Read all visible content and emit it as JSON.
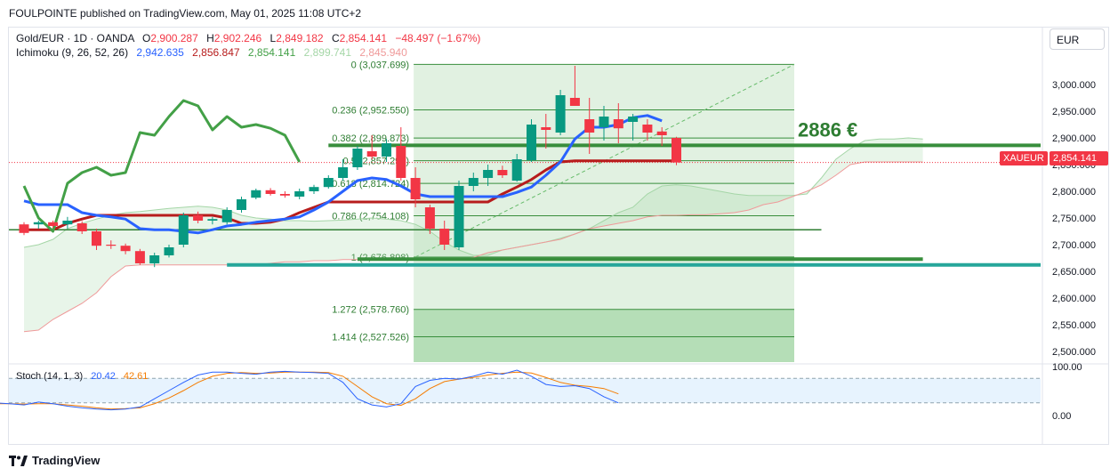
{
  "header": {
    "publisher": "FOULPOINTE published on TradingView.com, May 01, 2025 11:08 UTC+2"
  },
  "currency_button": "EUR",
  "legend": {
    "symbol": "Gold/EUR · 1D · OANDA",
    "o_label": "O",
    "o_value": "2,900.287",
    "h_label": "H",
    "h_value": "2,902.246",
    "l_label": "L",
    "l_value": "2,849.182",
    "c_label": "C",
    "c_value": "2,854.141",
    "change": "−48.497 (−1.67%)",
    "ichimoku_label": "Ichimoku (9, 26, 52, 26)",
    "ichimoku_values": [
      "2,942.635",
      "2,856.847",
      "2,854.141",
      "2,899.741",
      "2,845.940"
    ],
    "stoch_label": "Stoch (14, 1, 3)",
    "stoch_values": [
      "20.42",
      "42.61"
    ]
  },
  "price_tag": {
    "symbol": "XAUEUR",
    "value": "2,854.141"
  },
  "annotation": {
    "text": "2886 €",
    "price": 2886
  },
  "footer": {
    "brand": "TradingView"
  },
  "colors": {
    "up": "#089981",
    "down": "#f23645",
    "tenkan": "#2962ff",
    "kijun": "#b71c1c",
    "lagging": "#43a047",
    "cloud": "#a5d6a7",
    "fib": "#388e3c",
    "stoch_k": "#2962ff",
    "stoch_d": "#f57c00"
  },
  "chart_data": {
    "type": "candlestick",
    "y_ticks": [
      "2,500.000",
      "2,550.000",
      "2,600.000",
      "2,650.000",
      "2,700.000",
      "2,750.000",
      "2,800.000",
      "2,850.000",
      "2,900.000",
      "2,950.000",
      "3,000.000"
    ],
    "ylim": [
      2480,
      3055
    ],
    "stoch_ticks": [
      "0.00",
      "100.00"
    ],
    "candles": [
      [
        2738,
        2742,
        2718,
        2722
      ],
      [
        2738,
        2745,
        2730,
        2742
      ],
      [
        2742,
        2745,
        2732,
        2735
      ],
      [
        2738,
        2752,
        2730,
        2745
      ],
      [
        2740,
        2744,
        2720,
        2725
      ],
      [
        2725,
        2730,
        2690,
        2698
      ],
      [
        2700,
        2708,
        2692,
        2698
      ],
      [
        2698,
        2702,
        2682,
        2688
      ],
      [
        2688,
        2692,
        2662,
        2665
      ],
      [
        2665,
        2685,
        2658,
        2680
      ],
      [
        2680,
        2700,
        2676,
        2695
      ],
      [
        2700,
        2760,
        2695,
        2755
      ],
      [
        2755,
        2762,
        2740,
        2745
      ],
      [
        2745,
        2752,
        2738,
        2748
      ],
      [
        2742,
        2770,
        2738,
        2765
      ],
      [
        2765,
        2790,
        2760,
        2785
      ],
      [
        2788,
        2805,
        2785,
        2802
      ],
      [
        2802,
        2806,
        2792,
        2795
      ],
      [
        2795,
        2800,
        2788,
        2792
      ],
      [
        2790,
        2805,
        2785,
        2800
      ],
      [
        2800,
        2812,
        2795,
        2808
      ],
      [
        2808,
        2830,
        2805,
        2825
      ],
      [
        2825,
        2860,
        2820,
        2845
      ],
      [
        2845,
        2885,
        2840,
        2880
      ],
      [
        2875,
        2905,
        2860,
        2865
      ],
      [
        2865,
        2898,
        2855,
        2890
      ],
      [
        2885,
        2920,
        2820,
        2825
      ],
      [
        2825,
        2845,
        2770,
        2785
      ],
      [
        2770,
        2775,
        2720,
        2730
      ],
      [
        2730,
        2745,
        2690,
        2700
      ],
      [
        2695,
        2820,
        2690,
        2810
      ],
      [
        2810,
        2835,
        2800,
        2825
      ],
      [
        2825,
        2850,
        2810,
        2840
      ],
      [
        2840,
        2848,
        2825,
        2830
      ],
      [
        2820,
        2870,
        2818,
        2860
      ],
      [
        2858,
        2935,
        2855,
        2925
      ],
      [
        2920,
        2945,
        2880,
        2915
      ],
      [
        2910,
        2990,
        2905,
        2980
      ],
      [
        2975,
        3035,
        2960,
        2960
      ],
      [
        2935,
        2975,
        2870,
        2910
      ],
      [
        2920,
        2960,
        2895,
        2940
      ],
      [
        2935,
        2965,
        2890,
        2918
      ],
      [
        2930,
        2945,
        2895,
        2940
      ],
      [
        2925,
        2935,
        2895,
        2910
      ],
      [
        2912,
        2920,
        2885,
        2905
      ],
      [
        2900,
        2902,
        2849,
        2854
      ]
    ],
    "tenkan": [
      [
        0,
        2782
      ],
      [
        1,
        2775
      ],
      [
        2,
        2775
      ],
      [
        3,
        2775
      ],
      [
        4,
        2760
      ],
      [
        5,
        2755
      ],
      [
        6,
        2752
      ],
      [
        7,
        2748
      ],
      [
        8,
        2730
      ],
      [
        9,
        2728
      ],
      [
        10,
        2728
      ],
      [
        11,
        2725
      ],
      [
        12,
        2722
      ],
      [
        13,
        2728
      ],
      [
        14,
        2735
      ],
      [
        15,
        2738
      ],
      [
        16,
        2742
      ],
      [
        17,
        2745
      ],
      [
        18,
        2748
      ],
      [
        19,
        2752
      ],
      [
        20,
        2765
      ],
      [
        21,
        2780
      ],
      [
        22,
        2800
      ],
      [
        23,
        2820
      ],
      [
        24,
        2825
      ],
      [
        25,
        2822
      ],
      [
        26,
        2810
      ],
      [
        27,
        2795
      ],
      [
        28,
        2790
      ],
      [
        29,
        2790
      ],
      [
        30,
        2790
      ],
      [
        31,
        2790
      ],
      [
        32,
        2790
      ],
      [
        33,
        2790
      ],
      [
        34,
        2798
      ],
      [
        35,
        2808
      ],
      [
        36,
        2830
      ],
      [
        37,
        2855
      ],
      [
        38,
        2898
      ],
      [
        39,
        2920
      ],
      [
        40,
        2920
      ],
      [
        41,
        2925
      ],
      [
        42,
        2938
      ],
      [
        43,
        2942
      ],
      [
        44,
        2932
      ]
    ],
    "kijun": [
      [
        0,
        2728
      ],
      [
        1,
        2728
      ],
      [
        2,
        2728
      ],
      [
        3,
        2740
      ],
      [
        4,
        2748
      ],
      [
        5,
        2755
      ],
      [
        6,
        2755
      ],
      [
        7,
        2755
      ],
      [
        8,
        2755
      ],
      [
        9,
        2755
      ],
      [
        10,
        2755
      ],
      [
        11,
        2755
      ],
      [
        12,
        2755
      ],
      [
        13,
        2755
      ],
      [
        14,
        2750
      ],
      [
        15,
        2740
      ],
      [
        16,
        2740
      ],
      [
        17,
        2742
      ],
      [
        18,
        2748
      ],
      [
        19,
        2760
      ],
      [
        20,
        2770
      ],
      [
        21,
        2780
      ],
      [
        22,
        2780
      ],
      [
        23,
        2780
      ],
      [
        24,
        2780
      ],
      [
        25,
        2780
      ],
      [
        26,
        2780
      ],
      [
        27,
        2780
      ],
      [
        28,
        2780
      ],
      [
        29,
        2780
      ],
      [
        30,
        2780
      ],
      [
        31,
        2780
      ],
      [
        32,
        2780
      ],
      [
        33,
        2795
      ],
      [
        34,
        2808
      ],
      [
        35,
        2822
      ],
      [
        36,
        2840
      ],
      [
        37,
        2855
      ],
      [
        38,
        2857
      ],
      [
        39,
        2857
      ],
      [
        40,
        2857
      ],
      [
        41,
        2857
      ],
      [
        42,
        2857
      ],
      [
        43,
        2857
      ],
      [
        44,
        2857
      ],
      [
        45,
        2857
      ]
    ],
    "lagging": [
      [
        0,
        2810
      ],
      [
        1,
        2750
      ],
      [
        2,
        2725
      ],
      [
        3,
        2815
      ],
      [
        4,
        2835
      ],
      [
        5,
        2845
      ],
      [
        6,
        2830
      ],
      [
        7,
        2835
      ],
      [
        8,
        2910
      ],
      [
        9,
        2905
      ],
      [
        10,
        2940
      ],
      [
        11,
        2970
      ],
      [
        12,
        2960
      ],
      [
        13,
        2915
      ],
      [
        14,
        2940
      ],
      [
        15,
        2920
      ],
      [
        16,
        2925
      ],
      [
        17,
        2918
      ],
      [
        18,
        2905
      ],
      [
        19,
        2855
      ]
    ],
    "span_a": [
      [
        0,
        2695
      ],
      [
        1,
        2700
      ],
      [
        2,
        2710
      ],
      [
        3,
        2730
      ],
      [
        4,
        2740
      ],
      [
        5,
        2748
      ],
      [
        6,
        2755
      ],
      [
        7,
        2760
      ],
      [
        8,
        2762
      ],
      [
        9,
        2765
      ],
      [
        10,
        2768
      ],
      [
        11,
        2770
      ],
      [
        12,
        2772
      ],
      [
        13,
        2770
      ],
      [
        14,
        2765
      ],
      [
        15,
        2755
      ],
      [
        16,
        2750
      ],
      [
        17,
        2748
      ],
      [
        18,
        2745
      ],
      [
        19,
        2745
      ],
      [
        20,
        2744
      ],
      [
        21,
        2745
      ],
      [
        22,
        2746
      ],
      [
        23,
        2748
      ],
      [
        24,
        2750
      ],
      [
        25,
        2748
      ],
      [
        26,
        2745
      ],
      [
        27,
        2738
      ],
      [
        28,
        2725
      ],
      [
        29,
        2705
      ],
      [
        30,
        2690
      ],
      [
        31,
        2680
      ],
      [
        32,
        2680
      ],
      [
        33,
        2690
      ],
      [
        34,
        2695
      ],
      [
        35,
        2700
      ],
      [
        36,
        2705
      ],
      [
        37,
        2712
      ],
      [
        38,
        2720
      ],
      [
        39,
        2730
      ],
      [
        40,
        2745
      ],
      [
        41,
        2760
      ],
      [
        42,
        2770
      ],
      [
        43,
        2795
      ],
      [
        44,
        2810
      ],
      [
        45,
        2812
      ],
      [
        46,
        2810
      ],
      [
        47,
        2805
      ],
      [
        48,
        2800
      ],
      [
        49,
        2795
      ],
      [
        50,
        2792
      ],
      [
        51,
        2792
      ],
      [
        52,
        2792
      ],
      [
        53,
        2792
      ],
      [
        54,
        2795
      ],
      [
        55,
        2825
      ],
      [
        56,
        2860
      ],
      [
        57,
        2880
      ],
      [
        58,
        2895
      ],
      [
        59,
        2898
      ],
      [
        60,
        2898
      ],
      [
        61,
        2900
      ],
      [
        62,
        2898
      ]
    ],
    "span_b": [
      [
        0,
        2537
      ],
      [
        1,
        2540
      ],
      [
        2,
        2560
      ],
      [
        3,
        2575
      ],
      [
        4,
        2590
      ],
      [
        5,
        2610
      ],
      [
        6,
        2640
      ],
      [
        7,
        2660
      ],
      [
        8,
        2662
      ],
      [
        9,
        2662
      ],
      [
        10,
        2662
      ],
      [
        11,
        2662
      ],
      [
        12,
        2662
      ],
      [
        13,
        2662
      ],
      [
        14,
        2662
      ],
      [
        15,
        2662
      ],
      [
        16,
        2662
      ],
      [
        17,
        2665
      ],
      [
        18,
        2668
      ],
      [
        19,
        2668
      ],
      [
        20,
        2670
      ],
      [
        21,
        2670
      ],
      [
        22,
        2672
      ],
      [
        23,
        2672
      ],
      [
        24,
        2672
      ],
      [
        25,
        2672
      ],
      [
        26,
        2672
      ],
      [
        27,
        2672
      ],
      [
        28,
        2672
      ],
      [
        29,
        2672
      ],
      [
        30,
        2672
      ],
      [
        31,
        2676
      ],
      [
        32,
        2685
      ],
      [
        33,
        2690
      ],
      [
        34,
        2695
      ],
      [
        35,
        2700
      ],
      [
        36,
        2705
      ],
      [
        37,
        2710
      ],
      [
        38,
        2720
      ],
      [
        39,
        2730
      ],
      [
        40,
        2735
      ],
      [
        41,
        2740
      ],
      [
        42,
        2745
      ],
      [
        43,
        2752
      ],
      [
        44,
        2755
      ],
      [
        45,
        2755
      ],
      [
        46,
        2756
      ],
      [
        47,
        2756
      ],
      [
        48,
        2758
      ],
      [
        49,
        2760
      ],
      [
        50,
        2765
      ],
      [
        51,
        2775
      ],
      [
        52,
        2780
      ],
      [
        53,
        2790
      ],
      [
        54,
        2800
      ],
      [
        55,
        2812
      ],
      [
        56,
        2830
      ],
      [
        57,
        2850
      ],
      [
        58,
        2855
      ],
      [
        59,
        2855
      ],
      [
        60,
        2855
      ],
      [
        61,
        2855
      ],
      [
        62,
        2855
      ]
    ],
    "fib_levels": [
      {
        "label": "0 (3,037.699)",
        "value": 3037.699
      },
      {
        "label": "0.236 (2,952.550)",
        "value": 2952.55
      },
      {
        "label": "0.382 (2,899.873)",
        "value": 2899.873
      },
      {
        "label": "0.5 (2,857.298)",
        "value": 2857.298
      },
      {
        "label": "0.618 (2,814.724)",
        "value": 2814.724
      },
      {
        "label": "0.786 (2,754.108)",
        "value": 2754.108
      },
      {
        "label": "1 (2,676.898)",
        "value": 2676.898
      },
      {
        "label": "1.272 (2,578.760)",
        "value": 2578.76
      },
      {
        "label": "1.414 (2,527.526)",
        "value": 2527.526
      }
    ],
    "horizontal_lines": [
      {
        "value": 2886,
        "color": "#388e3c",
        "from": 21,
        "to": 80,
        "width": 4
      },
      {
        "value": 2728,
        "color": "#2e7d32",
        "from": -1,
        "to": 55,
        "width": 1.5
      },
      {
        "value": 2673,
        "color": "#388e3c",
        "from": 23,
        "to": 62,
        "width": 4
      },
      {
        "value": 2662,
        "color": "#26a69a",
        "from": 14,
        "to": 80,
        "width": 4
      }
    ],
    "stoch_k": [
      [
        0,
        20
      ],
      [
        1,
        18
      ],
      [
        2,
        15
      ],
      [
        3,
        22
      ],
      [
        4,
        18
      ],
      [
        5,
        12
      ],
      [
        6,
        8
      ],
      [
        7,
        5
      ],
      [
        8,
        3
      ],
      [
        9,
        5
      ],
      [
        10,
        10
      ],
      [
        11,
        30
      ],
      [
        12,
        50
      ],
      [
        13,
        70
      ],
      [
        14,
        88
      ],
      [
        15,
        95
      ],
      [
        16,
        95
      ],
      [
        17,
        92
      ],
      [
        18,
        90
      ],
      [
        19,
        95
      ],
      [
        20,
        97
      ],
      [
        21,
        95
      ],
      [
        22,
        94
      ],
      [
        23,
        92
      ],
      [
        24,
        70
      ],
      [
        25,
        30
      ],
      [
        26,
        15
      ],
      [
        27,
        10
      ],
      [
        28,
        18
      ],
      [
        29,
        60
      ],
      [
        30,
        75
      ],
      [
        31,
        80
      ],
      [
        32,
        78
      ],
      [
        33,
        85
      ],
      [
        34,
        95
      ],
      [
        35,
        90
      ],
      [
        36,
        100
      ],
      [
        37,
        85
      ],
      [
        38,
        65
      ],
      [
        39,
        60
      ],
      [
        40,
        62
      ],
      [
        41,
        55
      ],
      [
        42,
        35
      ],
      [
        43,
        20
      ]
    ],
    "stoch_d": [
      [
        0,
        18
      ],
      [
        1,
        18
      ],
      [
        2,
        17
      ],
      [
        3,
        18
      ],
      [
        4,
        18
      ],
      [
        5,
        15
      ],
      [
        6,
        12
      ],
      [
        7,
        8
      ],
      [
        8,
        5
      ],
      [
        9,
        6
      ],
      [
        10,
        8
      ],
      [
        11,
        18
      ],
      [
        12,
        32
      ],
      [
        13,
        50
      ],
      [
        14,
        70
      ],
      [
        15,
        85
      ],
      [
        16,
        92
      ],
      [
        17,
        94
      ],
      [
        18,
        92
      ],
      [
        19,
        93
      ],
      [
        20,
        95
      ],
      [
        21,
        95
      ],
      [
        22,
        95
      ],
      [
        23,
        94
      ],
      [
        24,
        85
      ],
      [
        25,
        60
      ],
      [
        26,
        35
      ],
      [
        27,
        18
      ],
      [
        28,
        14
      ],
      [
        29,
        30
      ],
      [
        30,
        55
      ],
      [
        31,
        72
      ],
      [
        32,
        78
      ],
      [
        33,
        82
      ],
      [
        34,
        88
      ],
      [
        35,
        92
      ],
      [
        36,
        95
      ],
      [
        37,
        93
      ],
      [
        38,
        82
      ],
      [
        39,
        70
      ],
      [
        40,
        63
      ],
      [
        41,
        60
      ],
      [
        42,
        55
      ],
      [
        43,
        42
      ]
    ]
  }
}
